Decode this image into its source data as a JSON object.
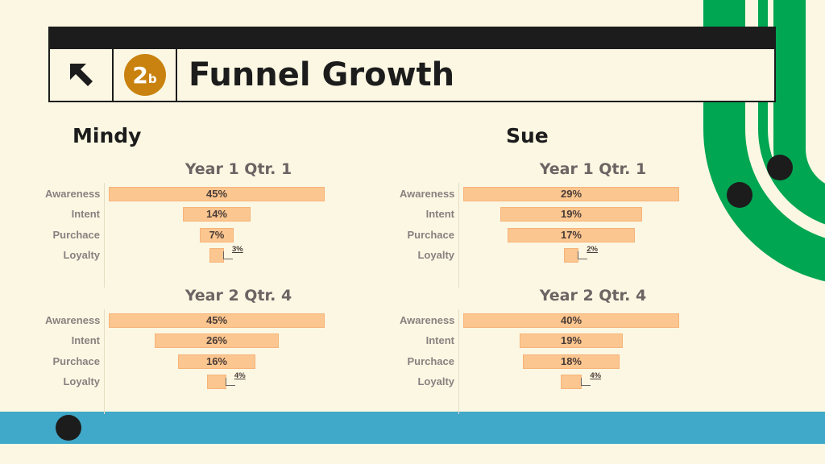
{
  "header": {
    "badge_number": "2",
    "badge_suffix": "b",
    "title": "Funnel Growth",
    "icons": [
      "arrow-up-left-icon"
    ]
  },
  "people": [
    {
      "name": "Mindy"
    },
    {
      "name": "Sue"
    }
  ],
  "colors": {
    "background": "#fcf7e3",
    "bar": "#fbc68f",
    "banner": "#1c1c1c",
    "badge": "#c9820f",
    "green_track": "#00a651",
    "blue_track": "#40a8c8"
  },
  "chart_data": [
    {
      "type": "bar",
      "title": "Year 1 Qtr. 1",
      "panel": "Mindy",
      "categories": [
        "Awareness",
        "Intent",
        "Purchace",
        "Loyalty"
      ],
      "values": [
        45,
        14,
        7,
        3
      ],
      "value_labels": [
        "45%",
        "14%",
        "7%",
        "3%"
      ],
      "xlim": [
        0,
        45
      ]
    },
    {
      "type": "bar",
      "title": "Year 2 Qtr. 4",
      "panel": "Mindy",
      "categories": [
        "Awareness",
        "Intent",
        "Purchace",
        "Loyalty"
      ],
      "values": [
        45,
        26,
        16,
        4
      ],
      "value_labels": [
        "45%",
        "26%",
        "16%",
        "4%"
      ],
      "xlim": [
        0,
        45
      ]
    },
    {
      "type": "bar",
      "title": "Year 1 Qtr. 1",
      "panel": "Sue",
      "categories": [
        "Awareness",
        "Intent",
        "Purchace",
        "Loyalty"
      ],
      "values": [
        29,
        19,
        17,
        2
      ],
      "value_labels": [
        "29%",
        "19%",
        "17%",
        "2%"
      ],
      "xlim": [
        0,
        29
      ]
    },
    {
      "type": "bar",
      "title": "Year 2 Qtr. 4",
      "panel": "Sue",
      "categories": [
        "Awareness",
        "Intent",
        "Purchace",
        "Loyalty"
      ],
      "values": [
        40,
        19,
        18,
        4
      ],
      "value_labels": [
        "40%",
        "19%",
        "18%",
        "4%"
      ],
      "xlim": [
        0,
        40
      ]
    }
  ]
}
